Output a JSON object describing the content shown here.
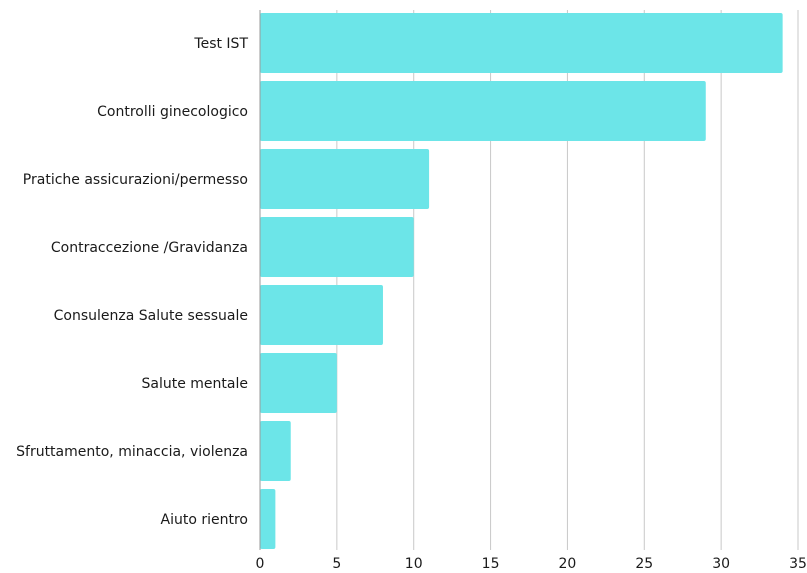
{
  "chart_data": {
    "type": "bar",
    "orientation": "horizontal",
    "title": "",
    "xlabel": "",
    "ylabel": "",
    "categories": [
      "Test IST",
      "Controlli ginecologico",
      "Pratiche assicurazioni/permesso",
      "Contraccezione /Gravidanza",
      "Consulenza Salute sessuale",
      "Salute mentale",
      "Sfruttamento, minaccia, violenza",
      "Aiuto rientro"
    ],
    "values": [
      34,
      29,
      11,
      10,
      8,
      5,
      2,
      1
    ],
    "xlim": [
      0,
      35
    ],
    "xticks": [
      0,
      5,
      10,
      15,
      20,
      25,
      30,
      35
    ],
    "grid": true,
    "legend": "none",
    "bar_color": "#6ce5e8"
  }
}
